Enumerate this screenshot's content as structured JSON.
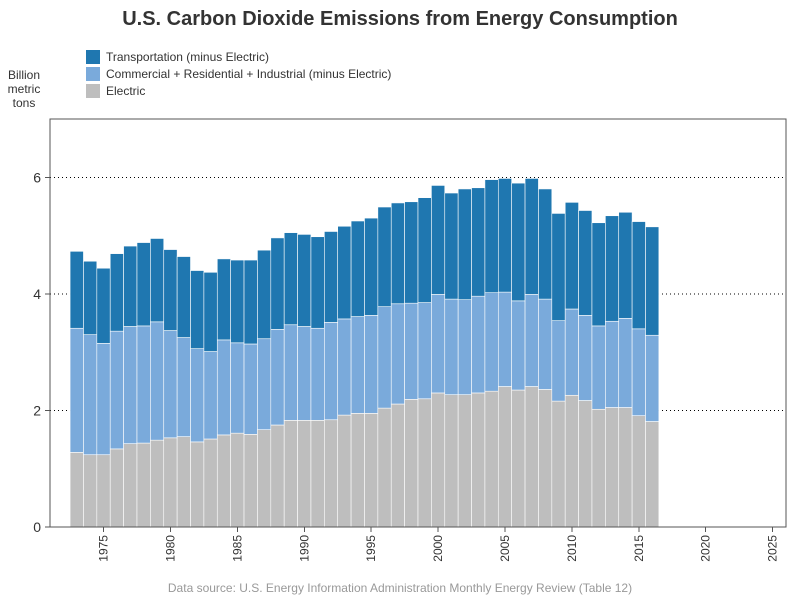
{
  "title": "U.S. Carbon Dioxide Emissions from Energy Consumption",
  "y_axis_label_lines": [
    "Billion",
    "metric",
    "tons"
  ],
  "source": "Data source: U.S. Energy Information Administration Monthly Energy Review (Table 12)",
  "legend": [
    {
      "name": "Transportation (minus Electric)",
      "color": "#1f77b0"
    },
    {
      "name": "Commercial + Residential + Industrial (minus Electric)",
      "color": "#7aaadb"
    },
    {
      "name": "Electric",
      "color": "#bebebe"
    }
  ],
  "chart_data": {
    "type": "bar",
    "stacked": true,
    "xlim": [
      1971,
      2026
    ],
    "ylim": [
      0,
      7
    ],
    "x_ticks": [
      1975,
      1980,
      1985,
      1990,
      1995,
      2000,
      2005,
      2010,
      2015,
      2020,
      2025
    ],
    "y_ticks": [
      0,
      2,
      4,
      6
    ],
    "grid": "horizontal dotted at 2, 4, 6",
    "legend_position": "top-left",
    "x": [
      1973,
      1974,
      1975,
      1976,
      1977,
      1978,
      1979,
      1980,
      1981,
      1982,
      1983,
      1984,
      1985,
      1986,
      1987,
      1988,
      1989,
      1990,
      1991,
      1992,
      1993,
      1994,
      1995,
      1996,
      1997,
      1998,
      1999,
      2000,
      2001,
      2002,
      2003,
      2004,
      2005,
      2006,
      2007,
      2008,
      2009,
      2010,
      2011,
      2012,
      2013,
      2014,
      2015,
      2016
    ],
    "series": [
      {
        "name": "Electric",
        "values": [
          1.28,
          1.24,
          1.24,
          1.34,
          1.43,
          1.44,
          1.49,
          1.53,
          1.55,
          1.46,
          1.51,
          1.58,
          1.61,
          1.59,
          1.67,
          1.75,
          1.83,
          1.83,
          1.83,
          1.84,
          1.92,
          1.95,
          1.95,
          2.04,
          2.11,
          2.19,
          2.2,
          2.3,
          2.27,
          2.27,
          2.3,
          2.33,
          2.41,
          2.35,
          2.41,
          2.36,
          2.16,
          2.26,
          2.17,
          2.02,
          2.05,
          2.05,
          1.91,
          1.81
        ]
      },
      {
        "name": "Commercial + Residential + Industrial (minus Electric)",
        "values": [
          2.13,
          2.06,
          1.91,
          2.02,
          2.01,
          2.01,
          2.03,
          1.84,
          1.7,
          1.6,
          1.5,
          1.63,
          1.55,
          1.55,
          1.56,
          1.64,
          1.64,
          1.61,
          1.58,
          1.67,
          1.65,
          1.66,
          1.68,
          1.74,
          1.72,
          1.65,
          1.65,
          1.69,
          1.64,
          1.63,
          1.66,
          1.69,
          1.62,
          1.53,
          1.58,
          1.55,
          1.38,
          1.48,
          1.46,
          1.43,
          1.48,
          1.53,
          1.49,
          1.48
        ]
      },
      {
        "name": "Transportation (minus Electric)",
        "values": [
          1.32,
          1.26,
          1.29,
          1.33,
          1.38,
          1.43,
          1.43,
          1.39,
          1.39,
          1.34,
          1.36,
          1.39,
          1.42,
          1.44,
          1.52,
          1.57,
          1.58,
          1.58,
          1.57,
          1.56,
          1.59,
          1.64,
          1.67,
          1.71,
          1.73,
          1.74,
          1.8,
          1.87,
          1.82,
          1.9,
          1.86,
          1.94,
          1.95,
          2.02,
          1.99,
          1.89,
          1.84,
          1.83,
          1.8,
          1.77,
          1.81,
          1.82,
          1.84,
          1.86
        ]
      }
    ]
  }
}
